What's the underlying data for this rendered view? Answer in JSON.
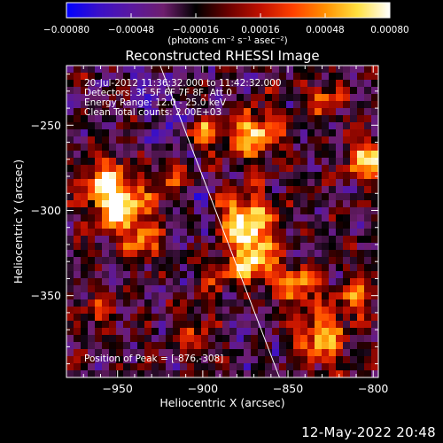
{
  "chart_data": {
    "type": "heatmap",
    "title": "Reconstructed RHESSI Image",
    "xlabel": "Heliocentric X (arcsec)",
    "ylabel": "Heliocentric Y (arcsec)",
    "xlim": [
      -980,
      -797
    ],
    "ylim": [
      -398,
      -215
    ],
    "x_ticks": [
      -950,
      -900,
      -850,
      -800
    ],
    "x_tick_labels": [
      "−950",
      "−900",
      "−850",
      "−800"
    ],
    "y_ticks": [
      -250,
      -300,
      -350
    ],
    "y_tick_labels": [
      "−250",
      "−300",
      "−350"
    ],
    "colorbar": {
      "min": -0.0008,
      "max": 0.0008,
      "ticks": [
        -0.0008,
        -0.00048,
        -0.00016,
        0.00016,
        0.00048,
        0.0008
      ],
      "tick_labels": [
        "−0.00080",
        "−0.00048",
        "−0.00016",
        "0.00016",
        "0.00048",
        "0.00080"
      ],
      "unit_label": "(photons cm⁻² s⁻¹ asec⁻²)",
      "colormap": [
        "#0000ff",
        "#3a10c8",
        "#5a18a0",
        "#6e1e6e",
        "#000000",
        "#6a0000",
        "#c01000",
        "#ff4000",
        "#ff9000",
        "#ffe040",
        "#ffffff"
      ]
    },
    "annotations": [
      "20-Jul-2012 11:36:32.000 to 11:42:32.000",
      "Detectors: 3F 5F 6F 7F 8F, Att 0",
      "Energy Range: 12.0 - 25.0 keV",
      "Clean    Total counts: 2.00E+03"
    ],
    "peak_label": "Position of Peak = [-876,-308]",
    "peak": {
      "x": -876,
      "y": -308
    },
    "grid": false,
    "limb_line": {
      "x_top": -925,
      "x_bottom": -855
    },
    "sources": [
      {
        "x": -948,
        "y": -298,
        "sigma": 11,
        "amp": 1.0
      },
      {
        "x": -958,
        "y": -282,
        "sigma": 9,
        "amp": 0.7
      },
      {
        "x": -935,
        "y": -320,
        "sigma": 8,
        "amp": 0.5
      },
      {
        "x": -915,
        "y": -280,
        "sigma": 8,
        "amp": 0.55
      },
      {
        "x": -876,
        "y": -308,
        "sigma": 12,
        "amp": 1.0
      },
      {
        "x": -870,
        "y": -255,
        "sigma": 10,
        "amp": 0.8
      },
      {
        "x": -900,
        "y": -255,
        "sigma": 7,
        "amp": 0.55
      },
      {
        "x": -870,
        "y": -330,
        "sigma": 9,
        "amp": 0.7
      },
      {
        "x": -890,
        "y": -335,
        "sigma": 8,
        "amp": 0.55
      },
      {
        "x": -845,
        "y": -345,
        "sigma": 9,
        "amp": 0.65
      },
      {
        "x": -830,
        "y": -375,
        "sigma": 10,
        "amp": 0.75
      },
      {
        "x": -810,
        "y": -350,
        "sigma": 8,
        "amp": 0.55
      },
      {
        "x": -802,
        "y": -270,
        "sigma": 9,
        "amp": 0.8
      },
      {
        "x": -830,
        "y": -235,
        "sigma": 7,
        "amp": 0.5
      },
      {
        "x": -960,
        "y": -360,
        "sigma": 8,
        "amp": 0.3
      },
      {
        "x": -905,
        "y": -375,
        "sigma": 7,
        "amp": 0.35
      }
    ]
  },
  "footer": {
    "timestamp": "12-May-2022 20:48"
  }
}
